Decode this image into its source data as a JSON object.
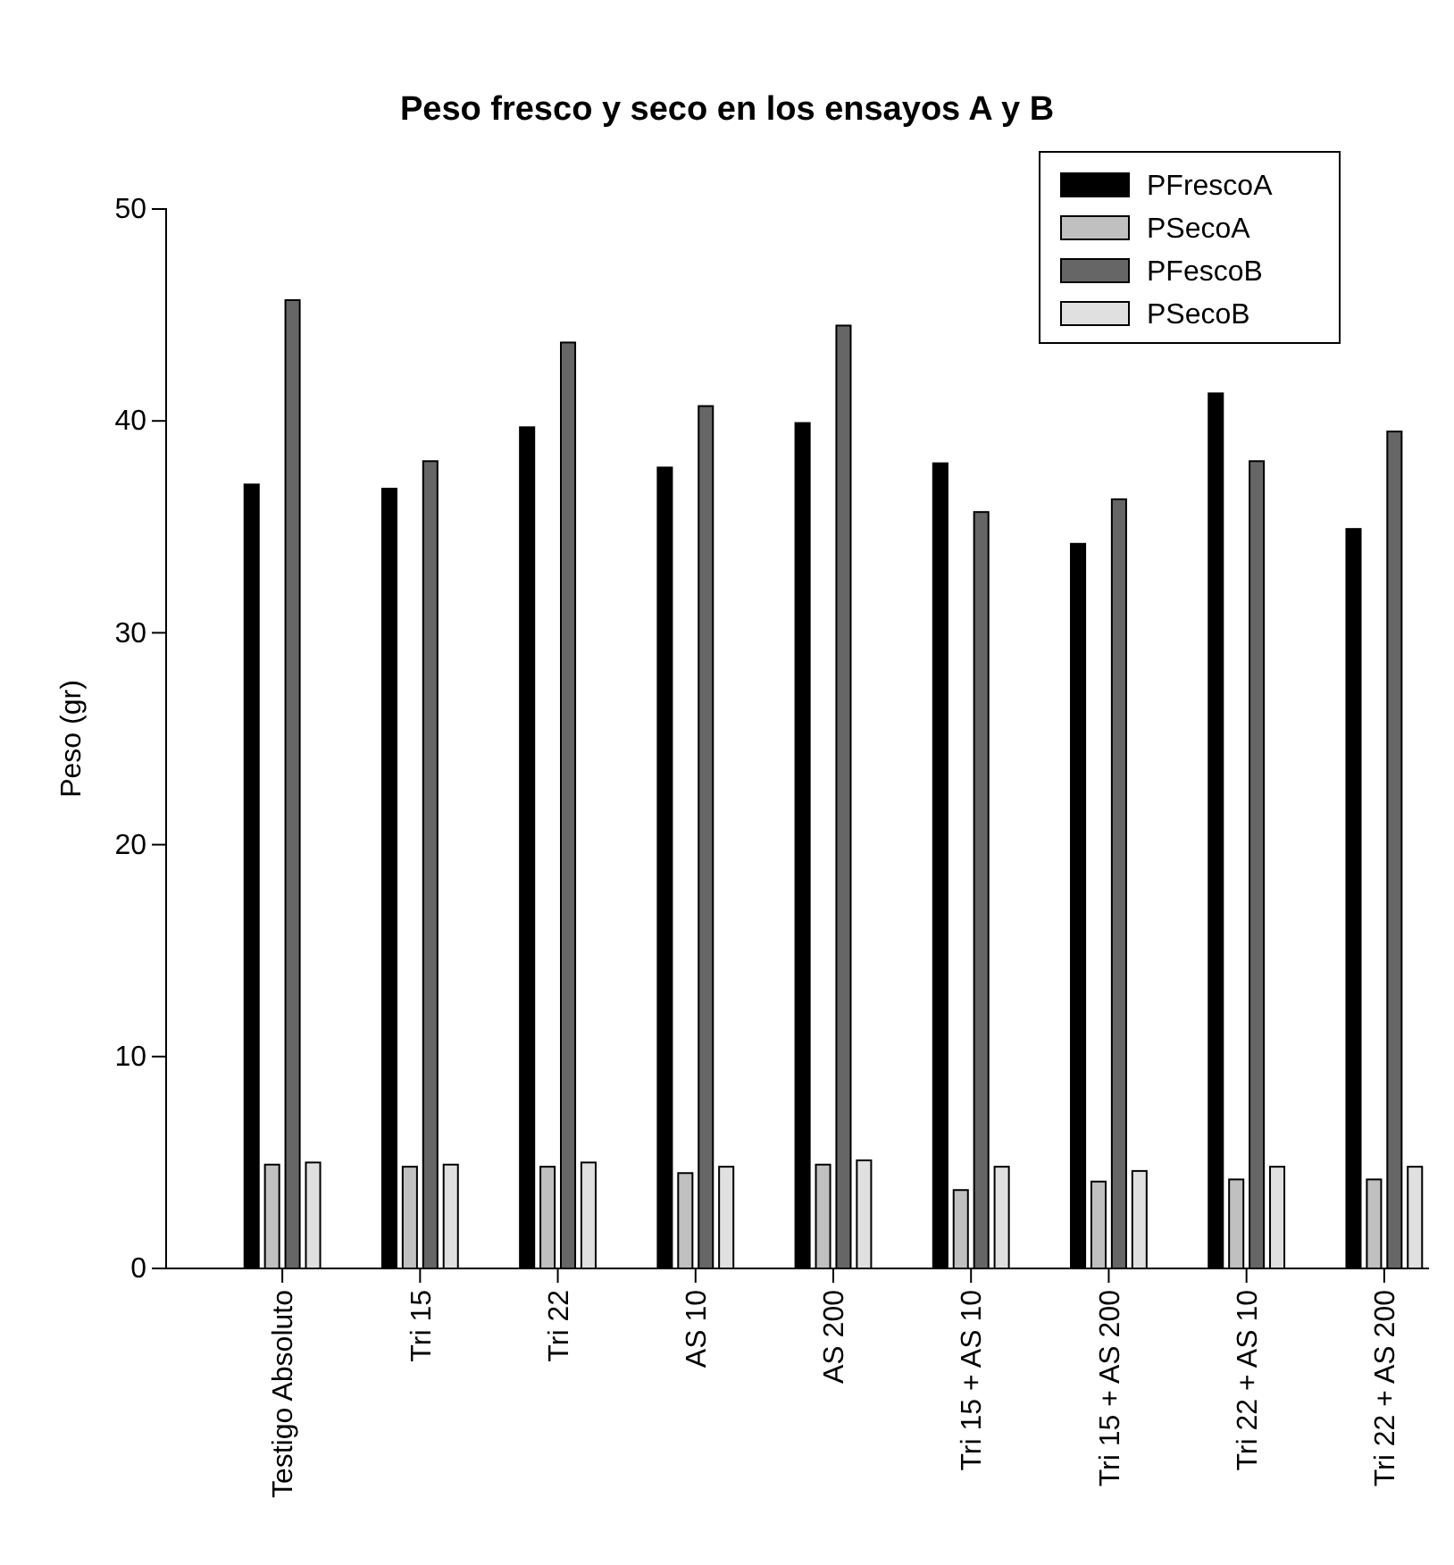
{
  "chart_data": {
    "type": "bar",
    "title": "Peso fresco y seco en los ensayos A y B",
    "ylabel": "Peso (gr)",
    "categories": [
      "Testigo Absoluto",
      "Tri 15",
      "Tri 22",
      "AS 10",
      "AS 200",
      "Tri 15 + AS 10",
      "Tri 15 + AS 200",
      "Tri 22 + AS 10",
      "Tri 22 + AS 200"
    ],
    "series": [
      {
        "name": "PFrescoA",
        "color": "#000000",
        "values": [
          37.0,
          36.8,
          39.7,
          37.8,
          39.9,
          38.0,
          34.2,
          41.3,
          34.9
        ]
      },
      {
        "name": "PSecoA",
        "color": "#c0c0c0",
        "values": [
          4.9,
          4.8,
          4.8,
          4.5,
          4.9,
          3.7,
          4.1,
          4.2,
          4.2
        ]
      },
      {
        "name": "PFescoB",
        "color": "#666666",
        "values": [
          45.7,
          38.1,
          43.7,
          40.7,
          44.5,
          35.7,
          36.3,
          38.1,
          39.5
        ]
      },
      {
        "name": "PSecoB",
        "color": "#e0e0e0",
        "values": [
          5.0,
          4.9,
          5.0,
          4.8,
          5.1,
          4.8,
          4.6,
          4.8,
          4.8
        ]
      }
    ],
    "ylim": [
      0,
      50
    ],
    "yticks": [
      0,
      10,
      20,
      30,
      40,
      50
    ],
    "grid": false,
    "legend": "top right"
  }
}
